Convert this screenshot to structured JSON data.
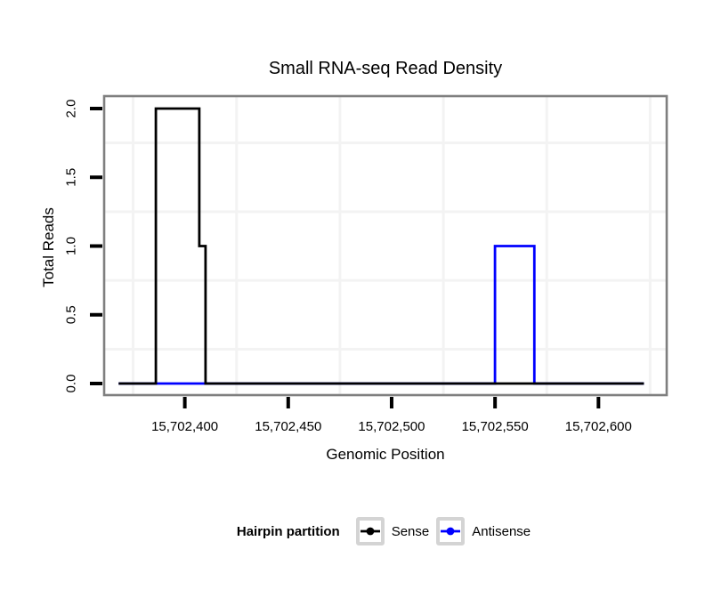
{
  "chart_data": {
    "type": "line",
    "subtype": "step",
    "title": "Small RNA-seq Read Density",
    "xlabel": "Genomic Position",
    "ylabel": "Total Reads",
    "xlim": [
      15702361,
      15702633
    ],
    "ylim": [
      0,
      2
    ],
    "x_ticks": [
      15702400,
      15702450,
      15702500,
      15702550,
      15702600
    ],
    "x_tick_labels": [
      "15,702,400",
      "15,702,450",
      "15,702,500",
      "15,702,550",
      "15,702,600"
    ],
    "y_ticks": [
      0.0,
      0.5,
      1.0,
      1.5,
      2.0
    ],
    "y_tick_labels": [
      "0.0",
      "0.5",
      "1.0",
      "1.5",
      "2.0"
    ],
    "grid": {
      "x_minor": [
        15702375,
        15702425,
        15702475,
        15702525,
        15702575,
        15702625
      ],
      "y_minor": [
        0.25,
        0.75,
        1.25,
        1.75
      ],
      "color": "#f3f3f3"
    },
    "panel_border_color": "#7f7f7f",
    "tick_color": "#000000",
    "series": [
      {
        "name": "Antisense",
        "color": "#0000ff",
        "points": [
          [
            15702368,
            0
          ],
          [
            15702550,
            0
          ],
          [
            15702550,
            1
          ],
          [
            15702569,
            1
          ],
          [
            15702569,
            0
          ],
          [
            15702622,
            0
          ]
        ]
      },
      {
        "name": "Sense",
        "color": "#000000",
        "points": [
          [
            15702368,
            0
          ],
          [
            15702386,
            0
          ],
          [
            15702386,
            2
          ],
          [
            15702407,
            2
          ],
          [
            15702407,
            1
          ],
          [
            15702410,
            1
          ],
          [
            15702410,
            0
          ],
          [
            15702622,
            0
          ]
        ]
      }
    ],
    "legend": {
      "title": "Hairpin partition",
      "position": "bottom",
      "entries": [
        {
          "label": "Sense",
          "color": "#000000"
        },
        {
          "label": "Antisense",
          "color": "#0000ff"
        }
      ]
    }
  }
}
